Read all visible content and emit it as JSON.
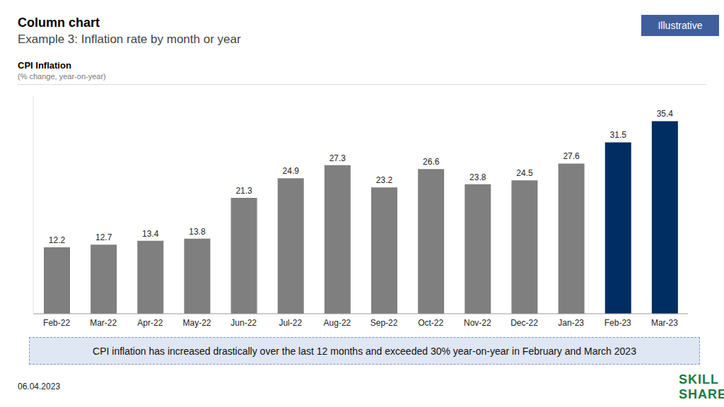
{
  "chart_data": {
    "type": "bar",
    "title": "Column chart",
    "subtitle": "Example 3: Inflation rate by month or year",
    "badge": "Illustrative",
    "chart_title": "CPI Inflation",
    "chart_subtitle": "(% change, year-on-year)",
    "categories": [
      "Feb-22",
      "Mar-22",
      "Apr-22",
      "May-22",
      "Jun-22",
      "Jul-22",
      "Aug-22",
      "Sep-22",
      "Oct-22",
      "Nov-22",
      "Dec-22",
      "Jan-23",
      "Feb-23",
      "Mar-23"
    ],
    "values": [
      12.2,
      12.7,
      13.4,
      13.8,
      21.3,
      24.9,
      27.3,
      23.2,
      26.6,
      23.8,
      24.5,
      27.6,
      31.5,
      35.4
    ],
    "colors": [
      "#7f7f7f",
      "#7f7f7f",
      "#7f7f7f",
      "#7f7f7f",
      "#7f7f7f",
      "#7f7f7f",
      "#7f7f7f",
      "#7f7f7f",
      "#7f7f7f",
      "#7f7f7f",
      "#7f7f7f",
      "#7f7f7f",
      "#002d62",
      "#002d62"
    ],
    "ylim": [
      0,
      40
    ],
    "data_labels": true,
    "tick_labels": "x",
    "grid": false,
    "annotation": "CPI inflation has increased drastically over the last 12 months and exceeded 30% year-on-year in February and March 2023",
    "date": "06.04.2023",
    "logo": [
      "SKILL",
      "SHARE"
    ]
  }
}
